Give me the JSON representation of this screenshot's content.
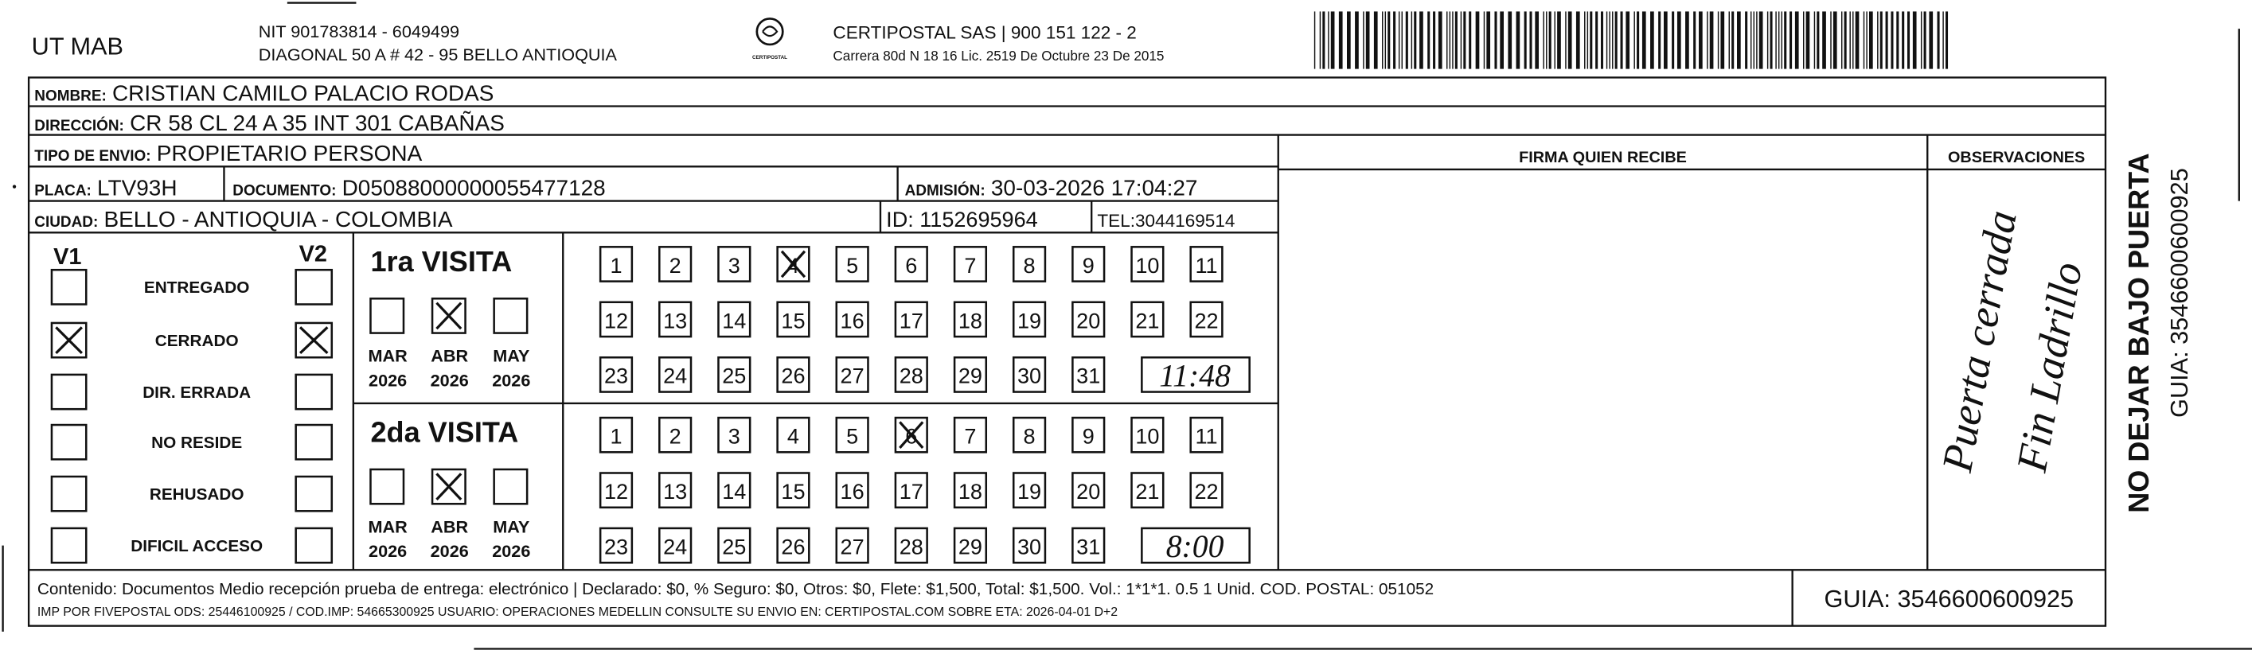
{
  "header": {
    "company": "UT MAB",
    "nit": "NIT 901783814 - 6049499",
    "address": "DIAGONAL 50 A # 42 - 95  BELLO  ANTIOQUIA",
    "logo_text": "CERTIPOSTAL",
    "carrier": "CERTIPOSTAL SAS | 900 151 122 - 2",
    "license": "Carrera 80d N 18 16  Lic. 2519 De Octubre 23 De 2015"
  },
  "recipient": {
    "name_label": "NOMBRE:",
    "name": "CRISTIAN CAMILO PALACIO RODAS",
    "address_label": "DIRECCIÓN:",
    "address": "CR 58 CL 24 A 35 INT 301 CABAÑAS",
    "type_label": "TIPO DE ENVIO:",
    "type": "PROPIETARIO PERSONA",
    "plate_label": "PLACA:",
    "plate": "LTV93H",
    "document_label": "DOCUMENTO:",
    "document": "D05088000000055477128",
    "admission_label": "ADMISIÓN:",
    "admission": "30-03-2026 17:04:27",
    "city_label": "CIUDAD:",
    "city": "BELLO - ANTIOQUIA - COLOMBIA",
    "id": "ID: 1152695964",
    "phone": "TEL:3044169514"
  },
  "signature": {
    "title": "FIRMA QUIEN RECIBE",
    "observations": "OBSERVACIONES",
    "note": [
      "Puerta cerrada",
      "Fin Ladrillo"
    ]
  },
  "status": {
    "v1": "V1",
    "v2": "V2",
    "options": [
      {
        "label": "ENTREGADO",
        "v1": false,
        "v2": false
      },
      {
        "label": "CERRADO",
        "v1": true,
        "v2": true
      },
      {
        "label": "DIR. ERRADA",
        "v1": false,
        "v2": false
      },
      {
        "label": "NO RESIDE",
        "v1": false,
        "v2": false
      },
      {
        "label": "REHUSADO",
        "v1": false,
        "v2": false
      },
      {
        "label": "DIFICIL ACCESO",
        "v1": false,
        "v2": false
      }
    ]
  },
  "visits": [
    {
      "title": "1ra VISITA",
      "months": [
        {
          "name": "MAR",
          "year": "2026",
          "checked": false
        },
        {
          "name": "ABR",
          "year": "2026",
          "checked": true
        },
        {
          "name": "MAY",
          "year": "2026",
          "checked": false
        }
      ],
      "days": [
        1,
        2,
        3,
        4,
        5,
        6,
        7,
        8,
        9,
        10,
        11,
        12,
        13,
        14,
        15,
        16,
        17,
        18,
        19,
        20,
        21,
        22,
        23,
        24,
        25,
        26,
        27,
        28,
        29,
        30,
        31
      ],
      "marked_day": 4,
      "time": "11:48"
    },
    {
      "title": "2da VISITA",
      "months": [
        {
          "name": "MAR",
          "year": "2026",
          "checked": false
        },
        {
          "name": "ABR",
          "year": "2026",
          "checked": true
        },
        {
          "name": "MAY",
          "year": "2026",
          "checked": false
        }
      ],
      "days": [
        1,
        2,
        3,
        4,
        5,
        6,
        7,
        8,
        9,
        10,
        11,
        12,
        13,
        14,
        15,
        16,
        17,
        18,
        19,
        20,
        21,
        22,
        23,
        24,
        25,
        26,
        27,
        28,
        29,
        30,
        31
      ],
      "marked_day": 6,
      "time": "8:00"
    }
  ],
  "footer": {
    "content": "Contenido: Documentos Medio recepción prueba de entrega: electrónico | Declarado: $0, % Seguro: $0, Otros: $0, Flete: $1,500, Total: $1,500. Vol.: 1*1*1. 0.5  1 Unid. COD. POSTAL: 051052",
    "imp": "IMP POR FIVEPOSTAL ODS: 25446100925 / COD.IMP: 54665300925 USUARIO: OPERACIONES MEDELLIN CONSULTE SU ENVIO EN: CERTIPOSTAL.COM SOBRE ETA: 2026-04-01 D+2",
    "guia": "GUIA: 3546600600925"
  },
  "side": {
    "warning": "NO DEJAR BAJO PUERTA",
    "guia": "GUIA: 3546600600925"
  }
}
